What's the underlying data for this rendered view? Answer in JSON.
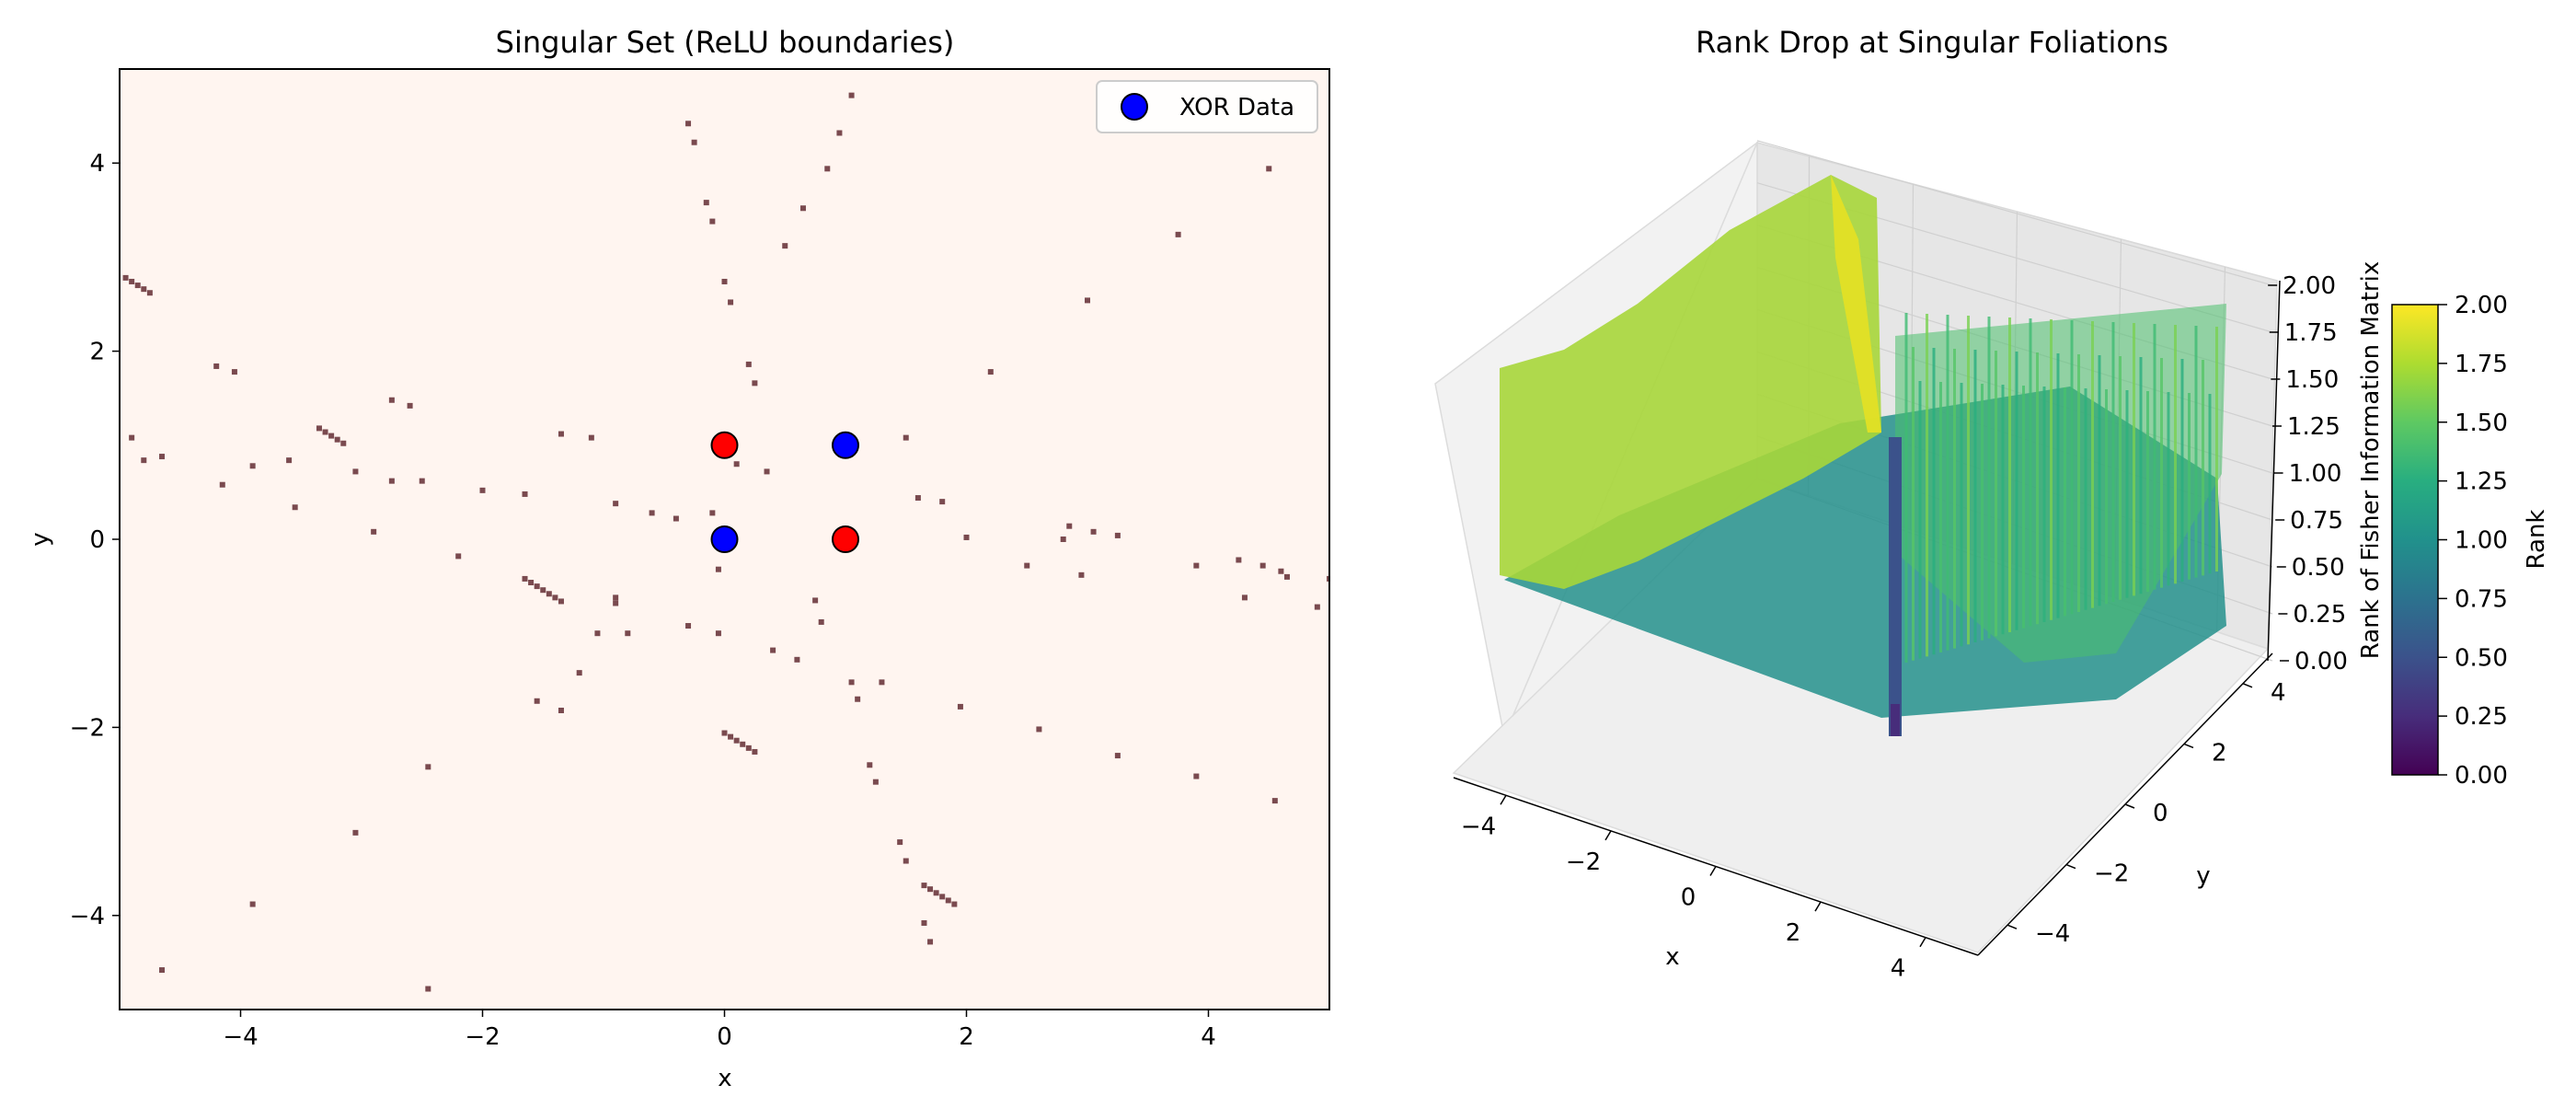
{
  "chart_data": [
    {
      "type": "scatter",
      "title": "Singular Set (ReLU boundaries)",
      "xlabel": "x",
      "ylabel": "y",
      "xlim": [
        -5,
        5
      ],
      "ylim": [
        -5,
        5
      ],
      "xticks": [
        -4,
        -2,
        0,
        2,
        4
      ],
      "yticks": [
        -4,
        -2,
        0,
        2,
        4
      ],
      "tick_labels_x": [
        "−4",
        "−2",
        "0",
        "2",
        "4"
      ],
      "tick_labels_y": [
        "−4",
        "−2",
        "0",
        "2",
        "4"
      ],
      "grid": false,
      "background_color": "#fff5f0",
      "singular_marker_color": "#7a4a4f",
      "legend": {
        "position": "top-right",
        "entries": [
          {
            "label": "XOR Data",
            "color": "#0000ff"
          }
        ]
      },
      "series": [
        {
          "name": "XOR Data",
          "points": [
            {
              "x": 0,
              "y": 0,
              "color": "#0000ff"
            },
            {
              "x": 1,
              "y": 1,
              "color": "#0000ff"
            },
            {
              "x": 0,
              "y": 1,
              "color": "#ff0000"
            },
            {
              "x": 1,
              "y": 0,
              "color": "#ff0000"
            }
          ]
        }
      ],
      "singular_points": [
        [
          -4.95,
          2.78
        ],
        [
          -4.9,
          2.74
        ],
        [
          -4.85,
          2.7
        ],
        [
          -4.8,
          2.66
        ],
        [
          -4.75,
          2.62
        ],
        [
          -4.9,
          1.08
        ],
        [
          -4.8,
          0.84
        ],
        [
          -4.65,
          0.88
        ],
        [
          -4.2,
          1.84
        ],
        [
          -4.05,
          1.78
        ],
        [
          -4.15,
          0.58
        ],
        [
          -3.9,
          0.78
        ],
        [
          -3.6,
          0.84
        ],
        [
          -3.55,
          0.34
        ],
        [
          -3.35,
          1.18
        ],
        [
          -3.3,
          1.14
        ],
        [
          -3.25,
          1.1
        ],
        [
          -3.2,
          1.06
        ],
        [
          -3.15,
          1.02
        ],
        [
          -3.05,
          0.72
        ],
        [
          -2.9,
          0.08
        ],
        [
          -2.75,
          1.48
        ],
        [
          -2.6,
          1.42
        ],
        [
          -2.75,
          0.62
        ],
        [
          -2.5,
          0.62
        ],
        [
          -2.2,
          -0.18
        ],
        [
          -2.0,
          0.52
        ],
        [
          -1.65,
          0.48
        ],
        [
          -1.65,
          -0.42
        ],
        [
          -1.6,
          -0.46
        ],
        [
          -1.55,
          -0.5
        ],
        [
          -1.5,
          -0.54
        ],
        [
          -1.45,
          -0.58
        ],
        [
          -1.4,
          -0.62
        ],
        [
          -1.35,
          -0.66
        ],
        [
          -1.55,
          -1.72
        ],
        [
          -1.35,
          -1.82
        ],
        [
          -1.35,
          1.12
        ],
        [
          -1.1,
          1.08
        ],
        [
          -1.2,
          -1.42
        ],
        [
          -1.05,
          -1.0
        ],
        [
          -0.9,
          0.38
        ],
        [
          -0.9,
          -0.62
        ],
        [
          -0.9,
          -0.68
        ],
        [
          -0.8,
          -1.0
        ],
        [
          -0.6,
          0.28
        ],
        [
          -0.4,
          0.22
        ],
        [
          -0.3,
          4.42
        ],
        [
          -0.25,
          4.22
        ],
        [
          -0.15,
          3.58
        ],
        [
          -0.1,
          3.38
        ],
        [
          -0.1,
          0.28
        ],
        [
          -0.05,
          -0.32
        ],
        [
          -0.3,
          -0.92
        ],
        [
          -0.05,
          -1.0
        ],
        [
          0.0,
          -2.06
        ],
        [
          0.05,
          -2.1
        ],
        [
          0.1,
          -2.14
        ],
        [
          0.15,
          -2.18
        ],
        [
          0.2,
          -2.22
        ],
        [
          0.25,
          -2.26
        ],
        [
          0.0,
          2.74
        ],
        [
          0.05,
          2.52
        ],
        [
          0.2,
          1.86
        ],
        [
          0.25,
          1.66
        ],
        [
          0.1,
          0.8
        ],
        [
          0.35,
          0.72
        ],
        [
          0.4,
          -1.18
        ],
        [
          0.5,
          3.12
        ],
        [
          0.65,
          3.52
        ],
        [
          0.6,
          -1.28
        ],
        [
          0.85,
          3.94
        ],
        [
          0.95,
          4.32
        ],
        [
          0.75,
          -0.65
        ],
        [
          0.8,
          -0.88
        ],
        [
          1.05,
          -1.52
        ],
        [
          1.1,
          -1.7
        ],
        [
          1.3,
          -1.52
        ],
        [
          1.2,
          -2.4
        ],
        [
          1.25,
          -2.58
        ],
        [
          1.45,
          -3.22
        ],
        [
          1.5,
          -3.42
        ],
        [
          1.05,
          4.72
        ],
        [
          1.5,
          1.08
        ],
        [
          1.6,
          0.44
        ],
        [
          1.8,
          0.4
        ],
        [
          1.65,
          -3.68
        ],
        [
          1.7,
          -3.72
        ],
        [
          1.75,
          -3.76
        ],
        [
          1.8,
          -3.8
        ],
        [
          1.85,
          -3.84
        ],
        [
          1.9,
          -3.88
        ],
        [
          1.65,
          -4.08
        ],
        [
          1.7,
          -4.28
        ],
        [
          1.95,
          -1.78
        ],
        [
          2.0,
          0.02
        ],
        [
          2.2,
          1.78
        ],
        [
          2.5,
          -0.28
        ],
        [
          2.6,
          -2.02
        ],
        [
          2.8,
          0.0
        ],
        [
          2.85,
          0.14
        ],
        [
          2.95,
          -0.38
        ],
        [
          3.0,
          2.54
        ],
        [
          3.05,
          0.08
        ],
        [
          3.25,
          0.04
        ],
        [
          3.25,
          -2.3
        ],
        [
          3.75,
          3.24
        ],
        [
          3.9,
          -0.28
        ],
        [
          3.9,
          -2.52
        ],
        [
          4.25,
          -0.22
        ],
        [
          4.3,
          -0.62
        ],
        [
          4.45,
          -0.28
        ],
        [
          4.5,
          3.94
        ],
        [
          4.55,
          -2.78
        ],
        [
          4.6,
          -0.34
        ],
        [
          4.65,
          -0.4
        ],
        [
          4.9,
          -0.72
        ],
        [
          5.0,
          -0.42
        ],
        [
          -4.65,
          -4.58
        ],
        [
          -3.9,
          -3.88
        ],
        [
          -3.05,
          -3.12
        ],
        [
          -2.45,
          -2.42
        ],
        [
          -2.45,
          -4.78
        ]
      ]
    },
    {
      "type": "surface3d",
      "title": "Rank Drop at Singular Foliations",
      "xlabel": "x",
      "ylabel": "y",
      "zlabel": "Rank of Fisher Information Matrix",
      "xlim": [
        -5,
        5
      ],
      "ylim": [
        -5,
        5
      ],
      "zlim": [
        0,
        2
      ],
      "xticks": [
        -4,
        -2,
        0,
        2,
        4
      ],
      "yticks": [
        -4,
        -2,
        0,
        2,
        4
      ],
      "zticks": [
        0.0,
        0.25,
        0.5,
        0.75,
        1.0,
        1.25,
        1.5,
        1.75,
        2.0
      ],
      "tick_labels_x": [
        "−4",
        "−2",
        "0",
        "2",
        "4"
      ],
      "tick_labels_y": [
        "−4",
        "−2",
        "0",
        "2",
        "4"
      ],
      "tick_labels_z": [
        "0.00",
        "0.25",
        "0.50",
        "0.75",
        "1.00",
        "1.25",
        "1.50",
        "1.75",
        "2.00"
      ],
      "grid": true,
      "colormap": "viridis",
      "colorbar": {
        "label": "Rank",
        "range": [
          0,
          2
        ],
        "ticks": [
          "0.00",
          "0.25",
          "0.50",
          "0.75",
          "1.00",
          "1.25",
          "1.50",
          "1.75",
          "2.00"
        ]
      },
      "surface_summary": {
        "base_level": 1.0,
        "high_region_level": 2.0,
        "min_level": 0.0
      }
    }
  ]
}
